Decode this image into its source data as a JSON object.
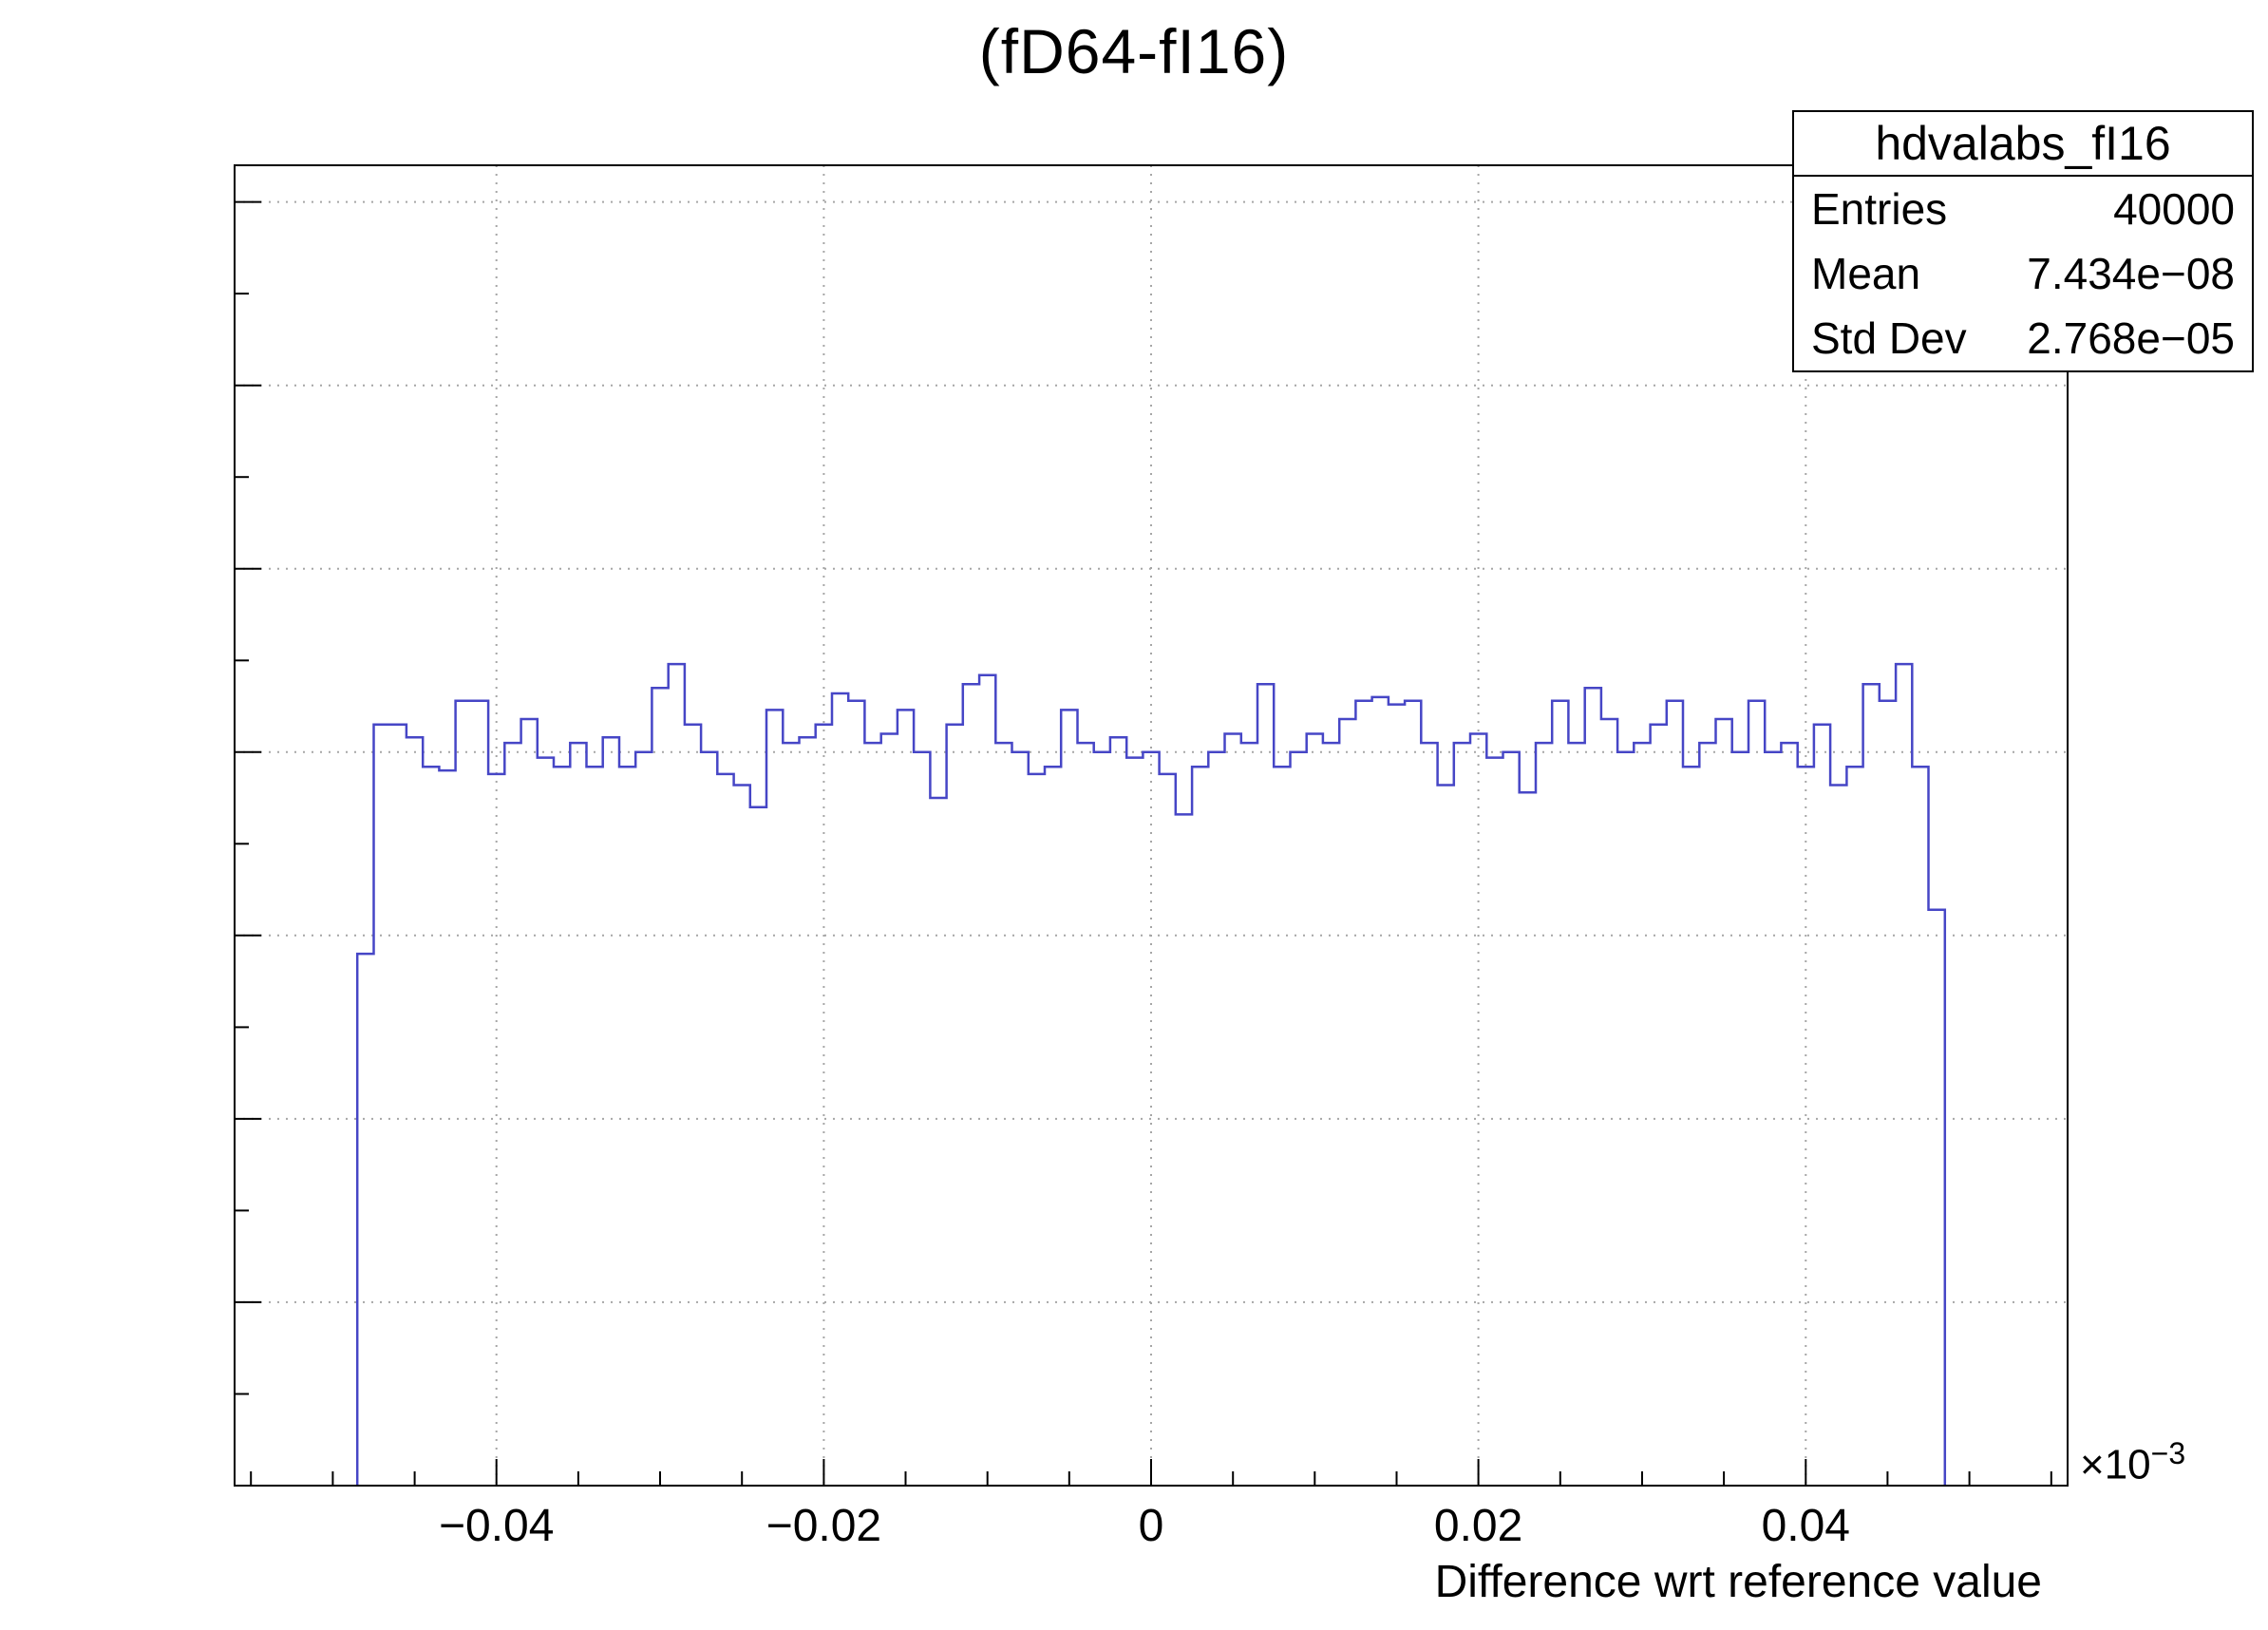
{
  "title": "(fD64-fI16)",
  "stats_box": {
    "title": "hdvalabs_fI16",
    "rows": [
      {
        "label": "Entries",
        "value": "40000"
      },
      {
        "label": "Mean",
        "value": "7.434e−08"
      },
      {
        "label": "Std Dev",
        "value": "2.768e−05"
      }
    ]
  },
  "axes": {
    "x_label": "Difference wrt reference value",
    "x_multiplier": "×10",
    "x_multiplier_exp": "−3",
    "x_tick_labels": [
      "−0.04",
      "−0.02",
      "0",
      "0.02",
      "0.04"
    ],
    "y_tick_labels": []
  },
  "colors": {
    "hist_line": "#4646c6",
    "grid": "#a6a6a6",
    "frame": "#000000",
    "background": "#ffffff"
  },
  "chart_data": {
    "type": "bar",
    "style": "step-outline-histogram",
    "title": "(fD64-fI16)",
    "xlabel": "Difference wrt reference value",
    "ylabel": "",
    "x_axis_scale_factor": "1e-3",
    "x_units_note": "x values in units of 1e-3",
    "x_start": -0.0485,
    "bin_width": 0.001,
    "values": [
      290,
      415,
      415,
      408,
      392,
      390,
      428,
      428,
      388,
      405,
      418,
      397,
      392,
      405,
      392,
      408,
      392,
      400,
      435,
      448,
      415,
      400,
      388,
      382,
      370,
      423,
      405,
      408,
      415,
      432,
      428,
      405,
      410,
      423,
      400,
      375,
      415,
      437,
      442,
      405,
      400,
      388,
      392,
      423,
      405,
      400,
      408,
      397,
      400,
      388,
      366,
      392,
      400,
      410,
      405,
      437,
      392,
      400,
      410,
      405,
      418,
      428,
      430,
      426,
      428,
      405,
      382,
      405,
      410,
      397,
      400,
      378,
      405,
      428,
      405,
      435,
      418,
      400,
      405,
      415,
      428,
      392,
      405,
      418,
      400,
      428,
      400,
      405,
      392,
      415,
      382,
      392,
      437,
      428,
      448,
      392,
      314
    ],
    "xlim": [
      -0.056,
      0.056
    ],
    "ylim": [
      0,
      720
    ],
    "x_major_ticks": [
      -0.04,
      -0.02,
      0,
      0.02,
      0.04
    ],
    "x_minor_step": 0.005,
    "y_gridlines": [
      100,
      200,
      300,
      400,
      500,
      600,
      700
    ],
    "y_minor_step": 50,
    "grid": true,
    "legend_position": "none",
    "entries": 40000,
    "mean": 7.434e-08,
    "std_dev": 2.768e-05
  }
}
